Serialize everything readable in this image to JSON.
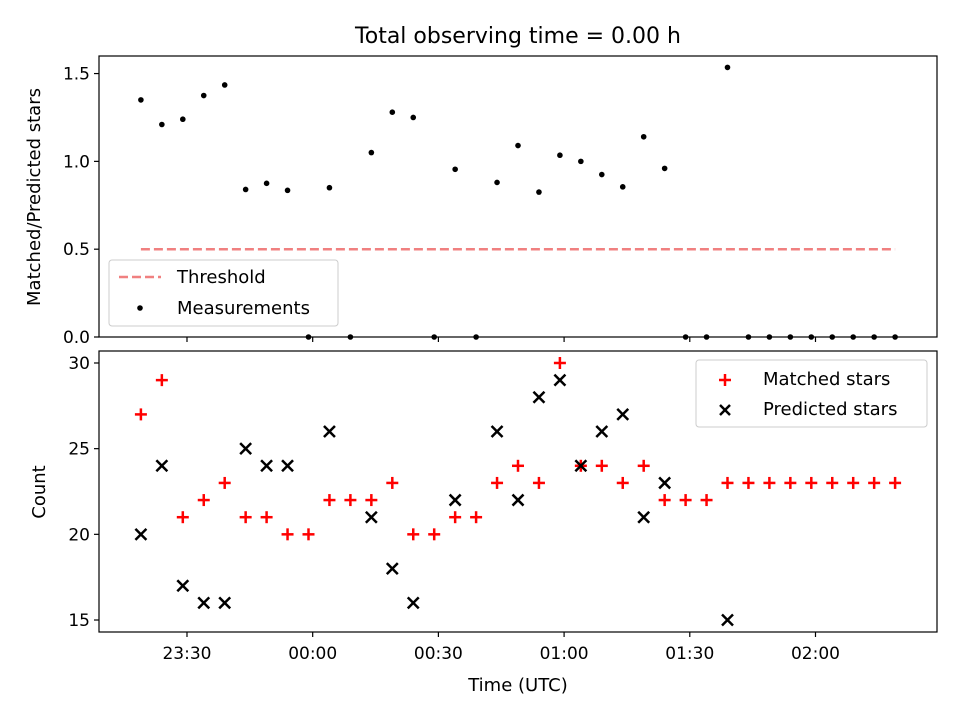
{
  "chart_data": [
    {
      "type": "scatter",
      "title": "Total observing time = 0.00 h",
      "ylabel": "Matched/Predicted stars",
      "xlabel": "",
      "x_unit": "time of day (UTC), HH:MM",
      "xlim": [
        "23:09",
        "02:29"
      ],
      "ylim": [
        0,
        1.6
      ],
      "yticks": [
        0.0,
        0.5,
        1.0,
        1.5
      ],
      "ytick_labels": [
        "0.0",
        "0.5",
        "1.0",
        "1.5"
      ],
      "grid": false,
      "legend": "bottom-left",
      "series": [
        {
          "name": "Threshold",
          "style": "dashed-line",
          "color": "#f08080",
          "x": [
            "23:19",
            "02:19"
          ],
          "y": [
            0.5,
            0.5
          ]
        },
        {
          "name": "Measurements",
          "style": "dot",
          "color": "#000000",
          "x": [
            "23:19",
            "23:24",
            "23:29",
            "23:34",
            "23:39",
            "23:44",
            "23:49",
            "23:54",
            "23:59",
            "00:04",
            "00:09",
            "00:14",
            "00:19",
            "00:24",
            "00:29",
            "00:34",
            "00:39",
            "00:44",
            "00:49",
            "00:54",
            "00:59",
            "01:04",
            "01:09",
            "01:14",
            "01:19",
            "01:24",
            "01:29",
            "01:34",
            "01:39",
            "01:44",
            "01:49",
            "01:54",
            "01:59",
            "02:04",
            "02:09",
            "02:14",
            "02:19"
          ],
          "y": [
            1.35,
            1.21,
            1.24,
            1.375,
            1.435,
            0.84,
            0.875,
            0.835,
            0.0,
            0.85,
            0.0,
            1.05,
            1.28,
            1.25,
            0.0,
            0.955,
            0.0,
            0.88,
            1.09,
            0.825,
            1.035,
            1.0,
            0.925,
            0.855,
            1.14,
            0.96,
            0.0,
            0.0,
            1.535,
            0.0,
            0.0,
            0.0,
            0.0,
            0.0,
            0.0,
            0.0,
            0.0
          ]
        }
      ]
    },
    {
      "type": "scatter",
      "title": "",
      "ylabel": "Count",
      "xlabel": "Time (UTC)",
      "x_unit": "time of day (UTC), HH:MM",
      "xlim": [
        "23:09",
        "02:29"
      ],
      "xticks": [
        "23:30",
        "00:00",
        "00:30",
        "01:00",
        "01:30",
        "02:00"
      ],
      "ylim": [
        14.3,
        30.7
      ],
      "yticks": [
        15,
        20,
        25,
        30
      ],
      "ytick_labels": [
        "15",
        "20",
        "25",
        "30"
      ],
      "grid": false,
      "legend": "top-right",
      "series": [
        {
          "name": "Matched stars",
          "marker": "+",
          "color": "#ff0000",
          "x": [
            "23:19",
            "23:24",
            "23:29",
            "23:34",
            "23:39",
            "23:44",
            "23:49",
            "23:54",
            "23:59",
            "00:04",
            "00:09",
            "00:14",
            "00:19",
            "00:24",
            "00:29",
            "00:34",
            "00:39",
            "00:44",
            "00:49",
            "00:54",
            "00:59",
            "01:04",
            "01:09",
            "01:14",
            "01:19",
            "01:24",
            "01:29",
            "01:34",
            "01:39",
            "01:44",
            "01:49",
            "01:54",
            "01:59",
            "02:04",
            "02:09",
            "02:14",
            "02:19"
          ],
          "y": [
            27,
            29,
            21,
            22,
            23,
            21,
            21,
            20,
            20,
            22,
            22,
            22,
            23,
            20,
            20,
            21,
            21,
            23,
            24,
            23,
            30,
            24,
            24,
            23,
            24,
            22,
            22,
            22,
            23,
            23,
            23,
            23,
            23,
            23,
            23,
            23,
            23
          ]
        },
        {
          "name": "Predicted stars",
          "marker": "x",
          "color": "#000000",
          "x": [
            "23:19",
            "23:24",
            "23:29",
            "23:34",
            "23:39",
            "23:44",
            "23:49",
            "23:54",
            "00:04",
            "00:14",
            "00:19",
            "00:24",
            "00:34",
            "00:44",
            "00:49",
            "00:54",
            "00:59",
            "01:04",
            "01:09",
            "01:14",
            "01:19",
            "01:24",
            "01:39"
          ],
          "y": [
            20,
            24,
            17,
            16,
            16,
            25,
            24,
            24,
            26,
            21,
            18,
            16,
            22,
            26,
            22,
            28,
            29,
            24,
            26,
            27,
            21,
            23,
            15
          ]
        }
      ]
    }
  ]
}
